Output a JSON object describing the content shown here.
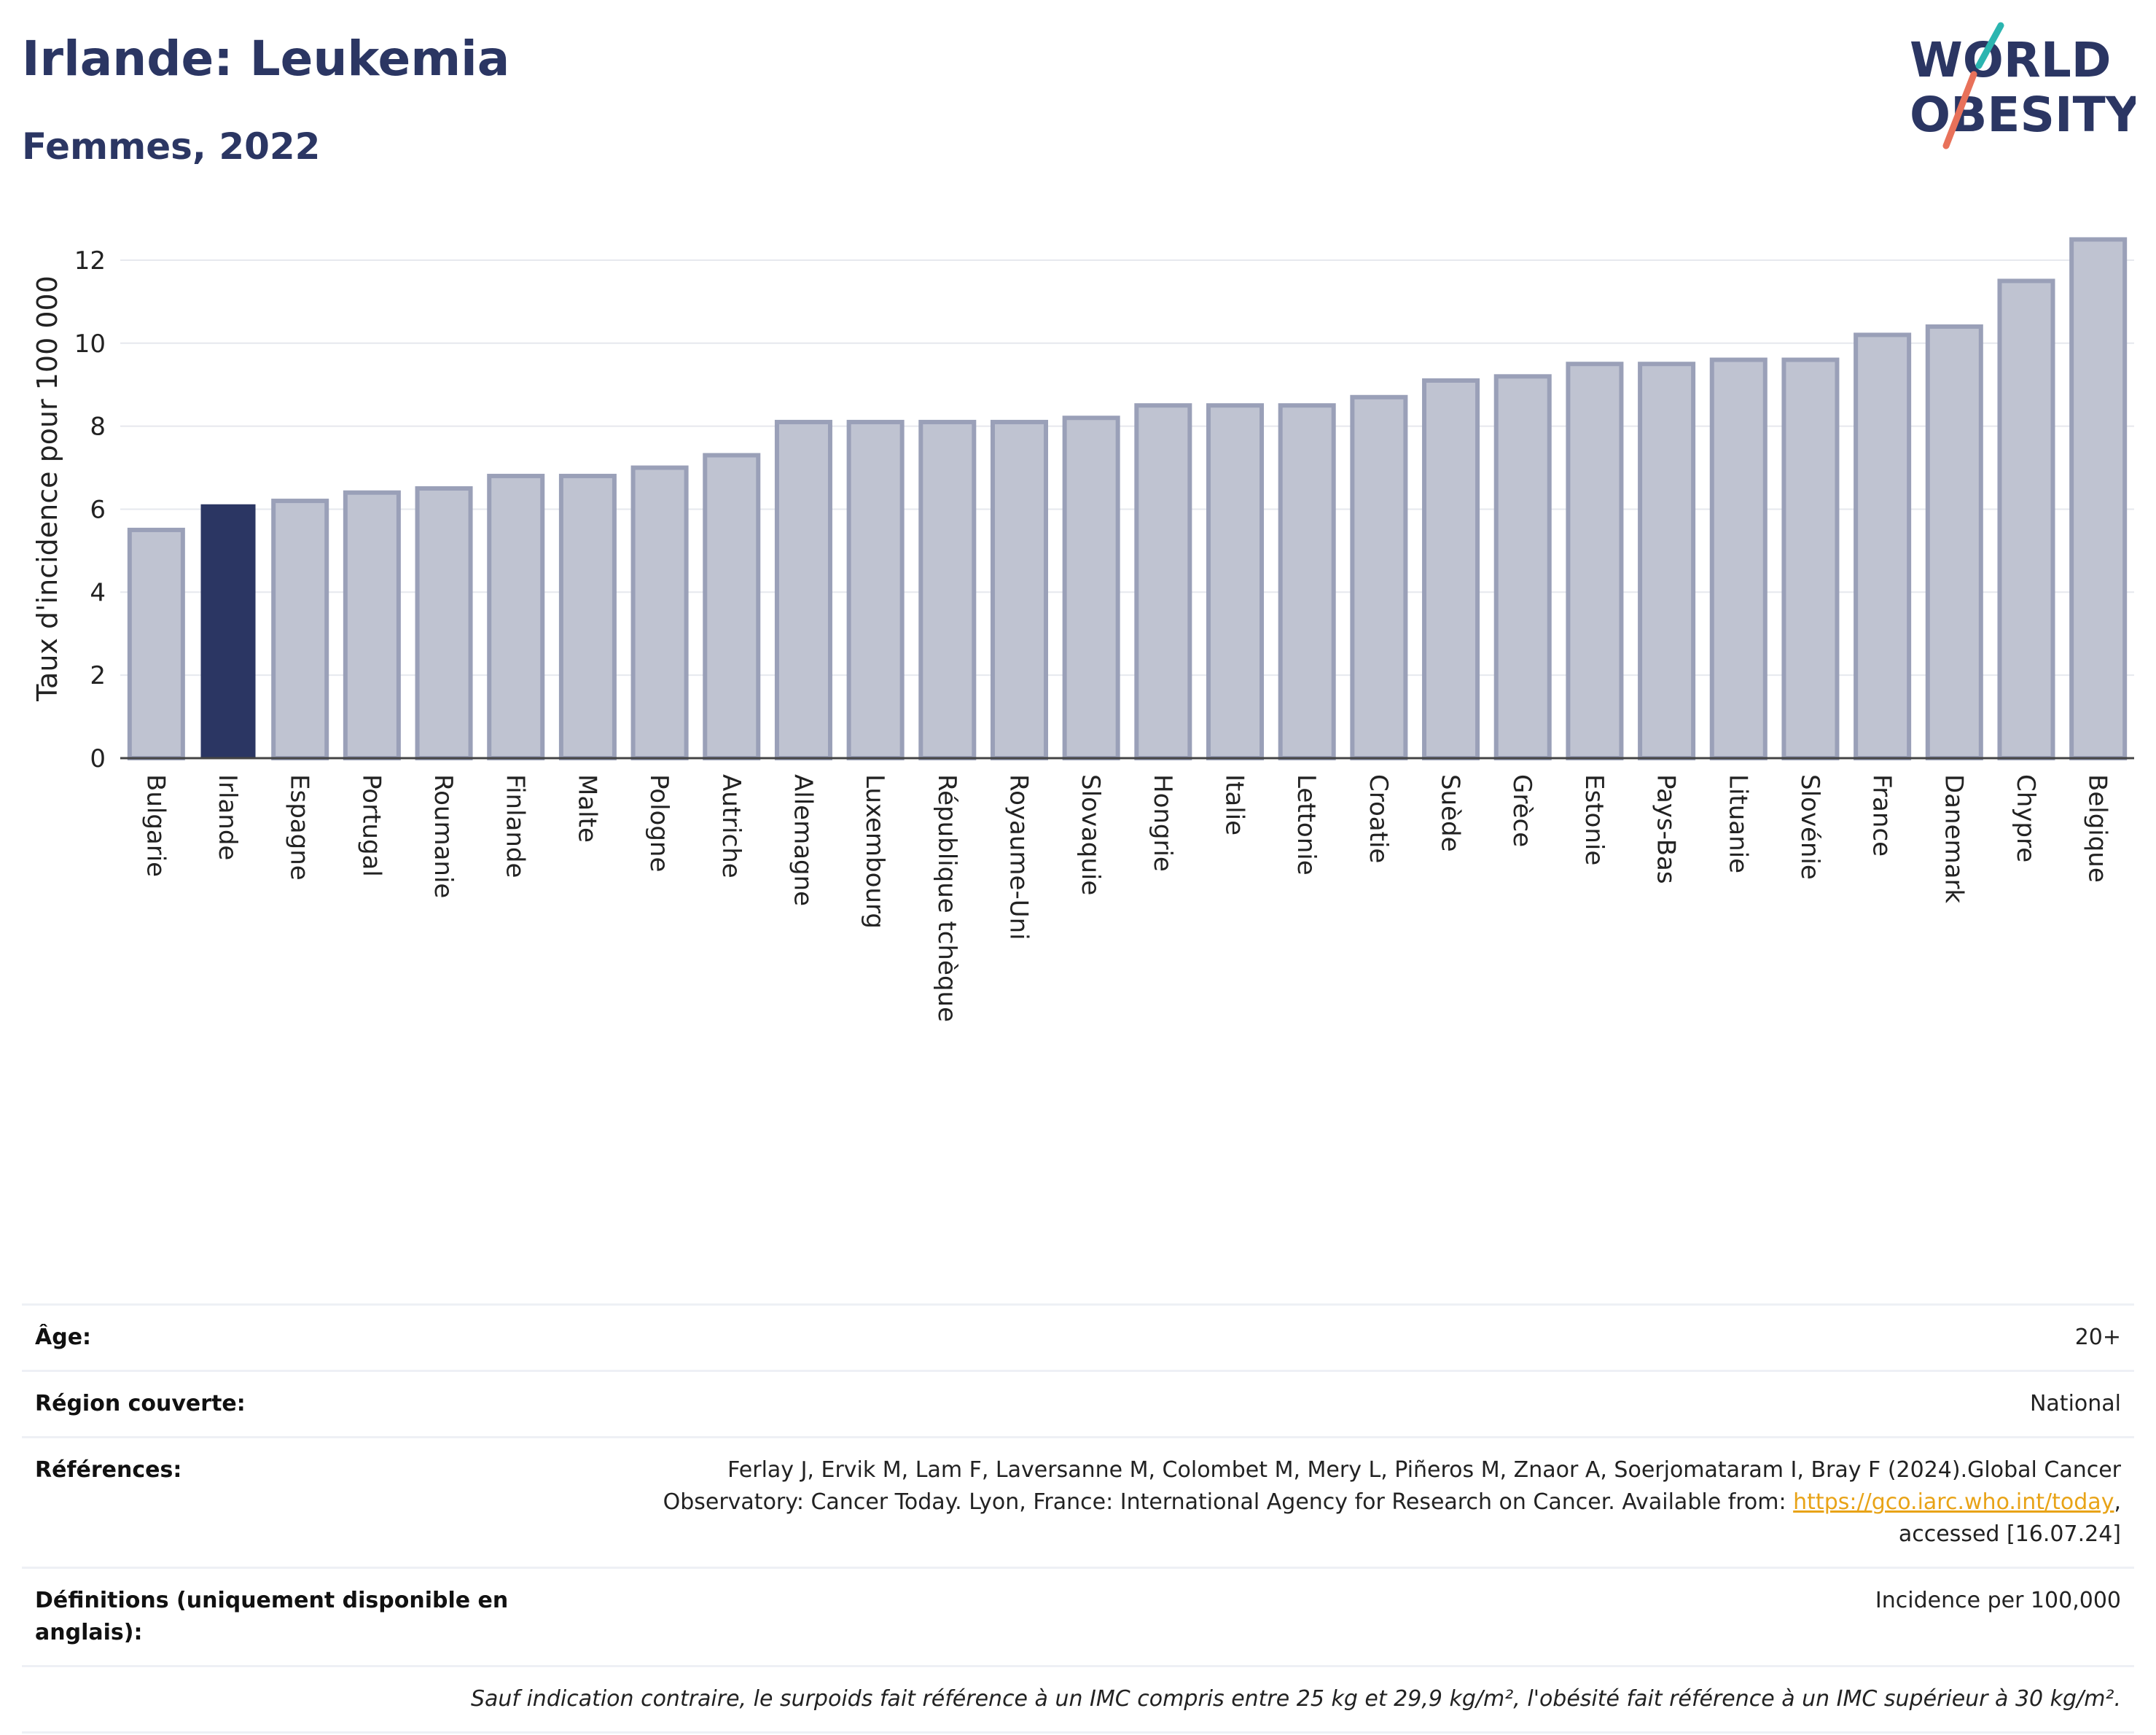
{
  "header": {
    "title": "Irlande: Leukemia",
    "subtitle": "Femmes, 2022"
  },
  "logo": {
    "line1": "WORLD",
    "line2": "OBESITY"
  },
  "colors": {
    "title": "#2b3663",
    "bar_default": "#bfc3d1",
    "bar_default_stroke": "#9aa0b8",
    "bar_highlight": "#2b3663",
    "link": "#e8a317",
    "logo_teal": "#2bb5b0",
    "logo_coral": "#e8715a"
  },
  "chart_data": {
    "type": "bar",
    "ylabel": "Taux d'incidence pour 100 000",
    "ylim": [
      0,
      13
    ],
    "yticks": [
      0,
      2,
      4,
      6,
      8,
      10,
      12
    ],
    "grid": true,
    "highlight": "Irlande",
    "categories": [
      "Bulgarie",
      "Irlande",
      "Espagne",
      "Portugal",
      "Roumanie",
      "Finlande",
      "Malte",
      "Pologne",
      "Autriche",
      "Allemagne",
      "Luxembourg",
      "République tchèque",
      "Royaume-Uni",
      "Slovaquie",
      "Hongrie",
      "Italie",
      "Lettonie",
      "Croatie",
      "Suède",
      "Grèce",
      "Estonie",
      "Pays-Bas",
      "Lituanie",
      "Slovénie",
      "France",
      "Danemark",
      "Chypre",
      "Belgique"
    ],
    "values": [
      5.5,
      6.1,
      6.2,
      6.4,
      6.5,
      6.8,
      6.8,
      7.0,
      7.3,
      8.1,
      8.1,
      8.1,
      8.1,
      8.2,
      8.5,
      8.5,
      8.5,
      8.7,
      9.1,
      9.2,
      9.5,
      9.5,
      9.6,
      9.6,
      10.2,
      10.4,
      11.5,
      12.5
    ]
  },
  "info": {
    "age_label": "Âge:",
    "age_value": "20+",
    "region_label": "Région couverte:",
    "region_value": "National",
    "refs_label": "Références:",
    "refs_text_1": "Ferlay J, Ervik M, Lam F, Laversanne M, Colombet M, Mery L, Piñeros M, Znaor A, Soerjomataram I, Bray F (2024).Global Cancer",
    "refs_text_2": "Observatory: Cancer Today. Lyon, France: International Agency for Research on Cancer. Available from: ",
    "refs_link": "https://gco.iarc.who.int/today",
    "refs_text_3": ",",
    "refs_text_4": "accessed [16.07.24]",
    "defs_label": "Définitions (uniquement disponible en anglais):",
    "defs_value": "Incidence per 100,000",
    "note": "Sauf indication contraire, le surpoids fait référence à un IMC compris entre 25 kg et 29,9 kg/m², l'obésité fait référence à un IMC supérieur à 30 kg/m²."
  }
}
